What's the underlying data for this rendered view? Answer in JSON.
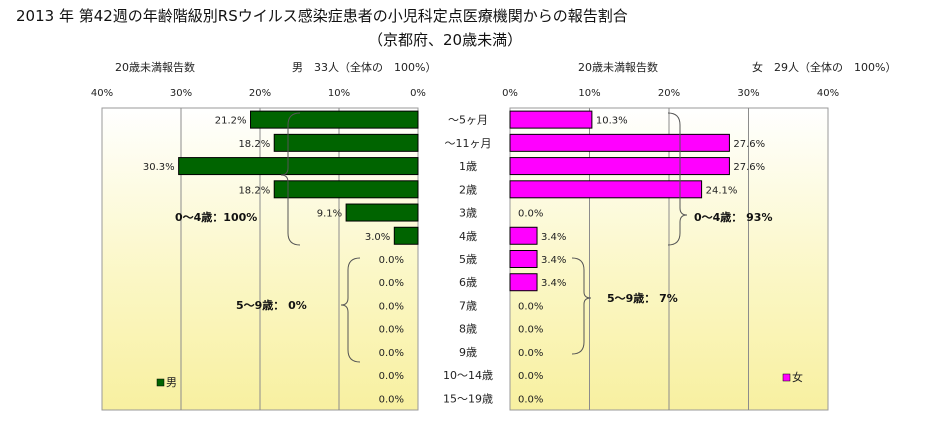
{
  "title": "2013 年 第42週の年齢階級別RSウイルス感染症患者の小児科定点医療機関からの報告割合",
  "subtitle": "（京都府、20歳未満）",
  "chart_data": [
    {
      "type": "bar",
      "orientation": "horizontal",
      "direction": "right-to-left",
      "panel": "left",
      "header_label": "20歳未満報告数",
      "header_count": "男　33人（全体の　100%）",
      "axis_ticks": [
        "40%",
        "30%",
        "20%",
        "10%",
        "0%"
      ],
      "xlim": [
        0,
        40
      ],
      "bar_color": "#006400",
      "categories": [
        "～5ヶ月",
        "～11ヶ月",
        "1歳",
        "2歳",
        "3歳",
        "4歳",
        "5歳",
        "6歳",
        "7歳",
        "8歳",
        "9歳",
        "10～14歳",
        "15～19歳"
      ],
      "series": [
        {
          "name": "男",
          "values": [
            21.2,
            18.2,
            30.3,
            18.2,
            9.1,
            3.0,
            0.0,
            0.0,
            0.0,
            0.0,
            0.0,
            0.0,
            0.0
          ],
          "labels": [
            "21.2%",
            "18.2%",
            "30.3%",
            "18.2%",
            "9.1%",
            "3.0%",
            "0.0%",
            "0.0%",
            "0.0%",
            "0.0%",
            "0.0%",
            "0.0%",
            "0.0%"
          ]
        }
      ],
      "annotations": [
        "0～4歳：100%",
        "5～9歳：  0%"
      ],
      "legend": "bottom-left",
      "grid": true
    },
    {
      "type": "bar",
      "orientation": "horizontal",
      "direction": "left-to-right",
      "panel": "right",
      "header_label": "20歳未満報告数",
      "header_count": "女　29人（全体の　100%）",
      "axis_ticks": [
        "0%",
        "10%",
        "20%",
        "30%",
        "40%"
      ],
      "xlim": [
        0,
        40
      ],
      "bar_color": "#FF00FF",
      "categories": [
        "～5ヶ月",
        "～11ヶ月",
        "1歳",
        "2歳",
        "3歳",
        "4歳",
        "5歳",
        "6歳",
        "7歳",
        "8歳",
        "9歳",
        "10～14歳",
        "15～19歳"
      ],
      "series": [
        {
          "name": "女",
          "values": [
            10.3,
            27.6,
            27.6,
            24.1,
            0.0,
            3.4,
            3.4,
            3.4,
            0.0,
            0.0,
            0.0,
            0.0,
            0.0
          ],
          "labels": [
            "10.3%",
            "27.6%",
            "27.6%",
            "24.1%",
            "0.0%",
            "3.4%",
            "3.4%",
            "3.4%",
            "0.0%",
            "0.0%",
            "0.0%",
            "0.0%",
            "0.0%"
          ]
        }
      ],
      "annotations": [
        "0～4歳：  93%",
        "5～9歳：  7%"
      ],
      "legend": "bottom-right",
      "grid": true
    }
  ]
}
